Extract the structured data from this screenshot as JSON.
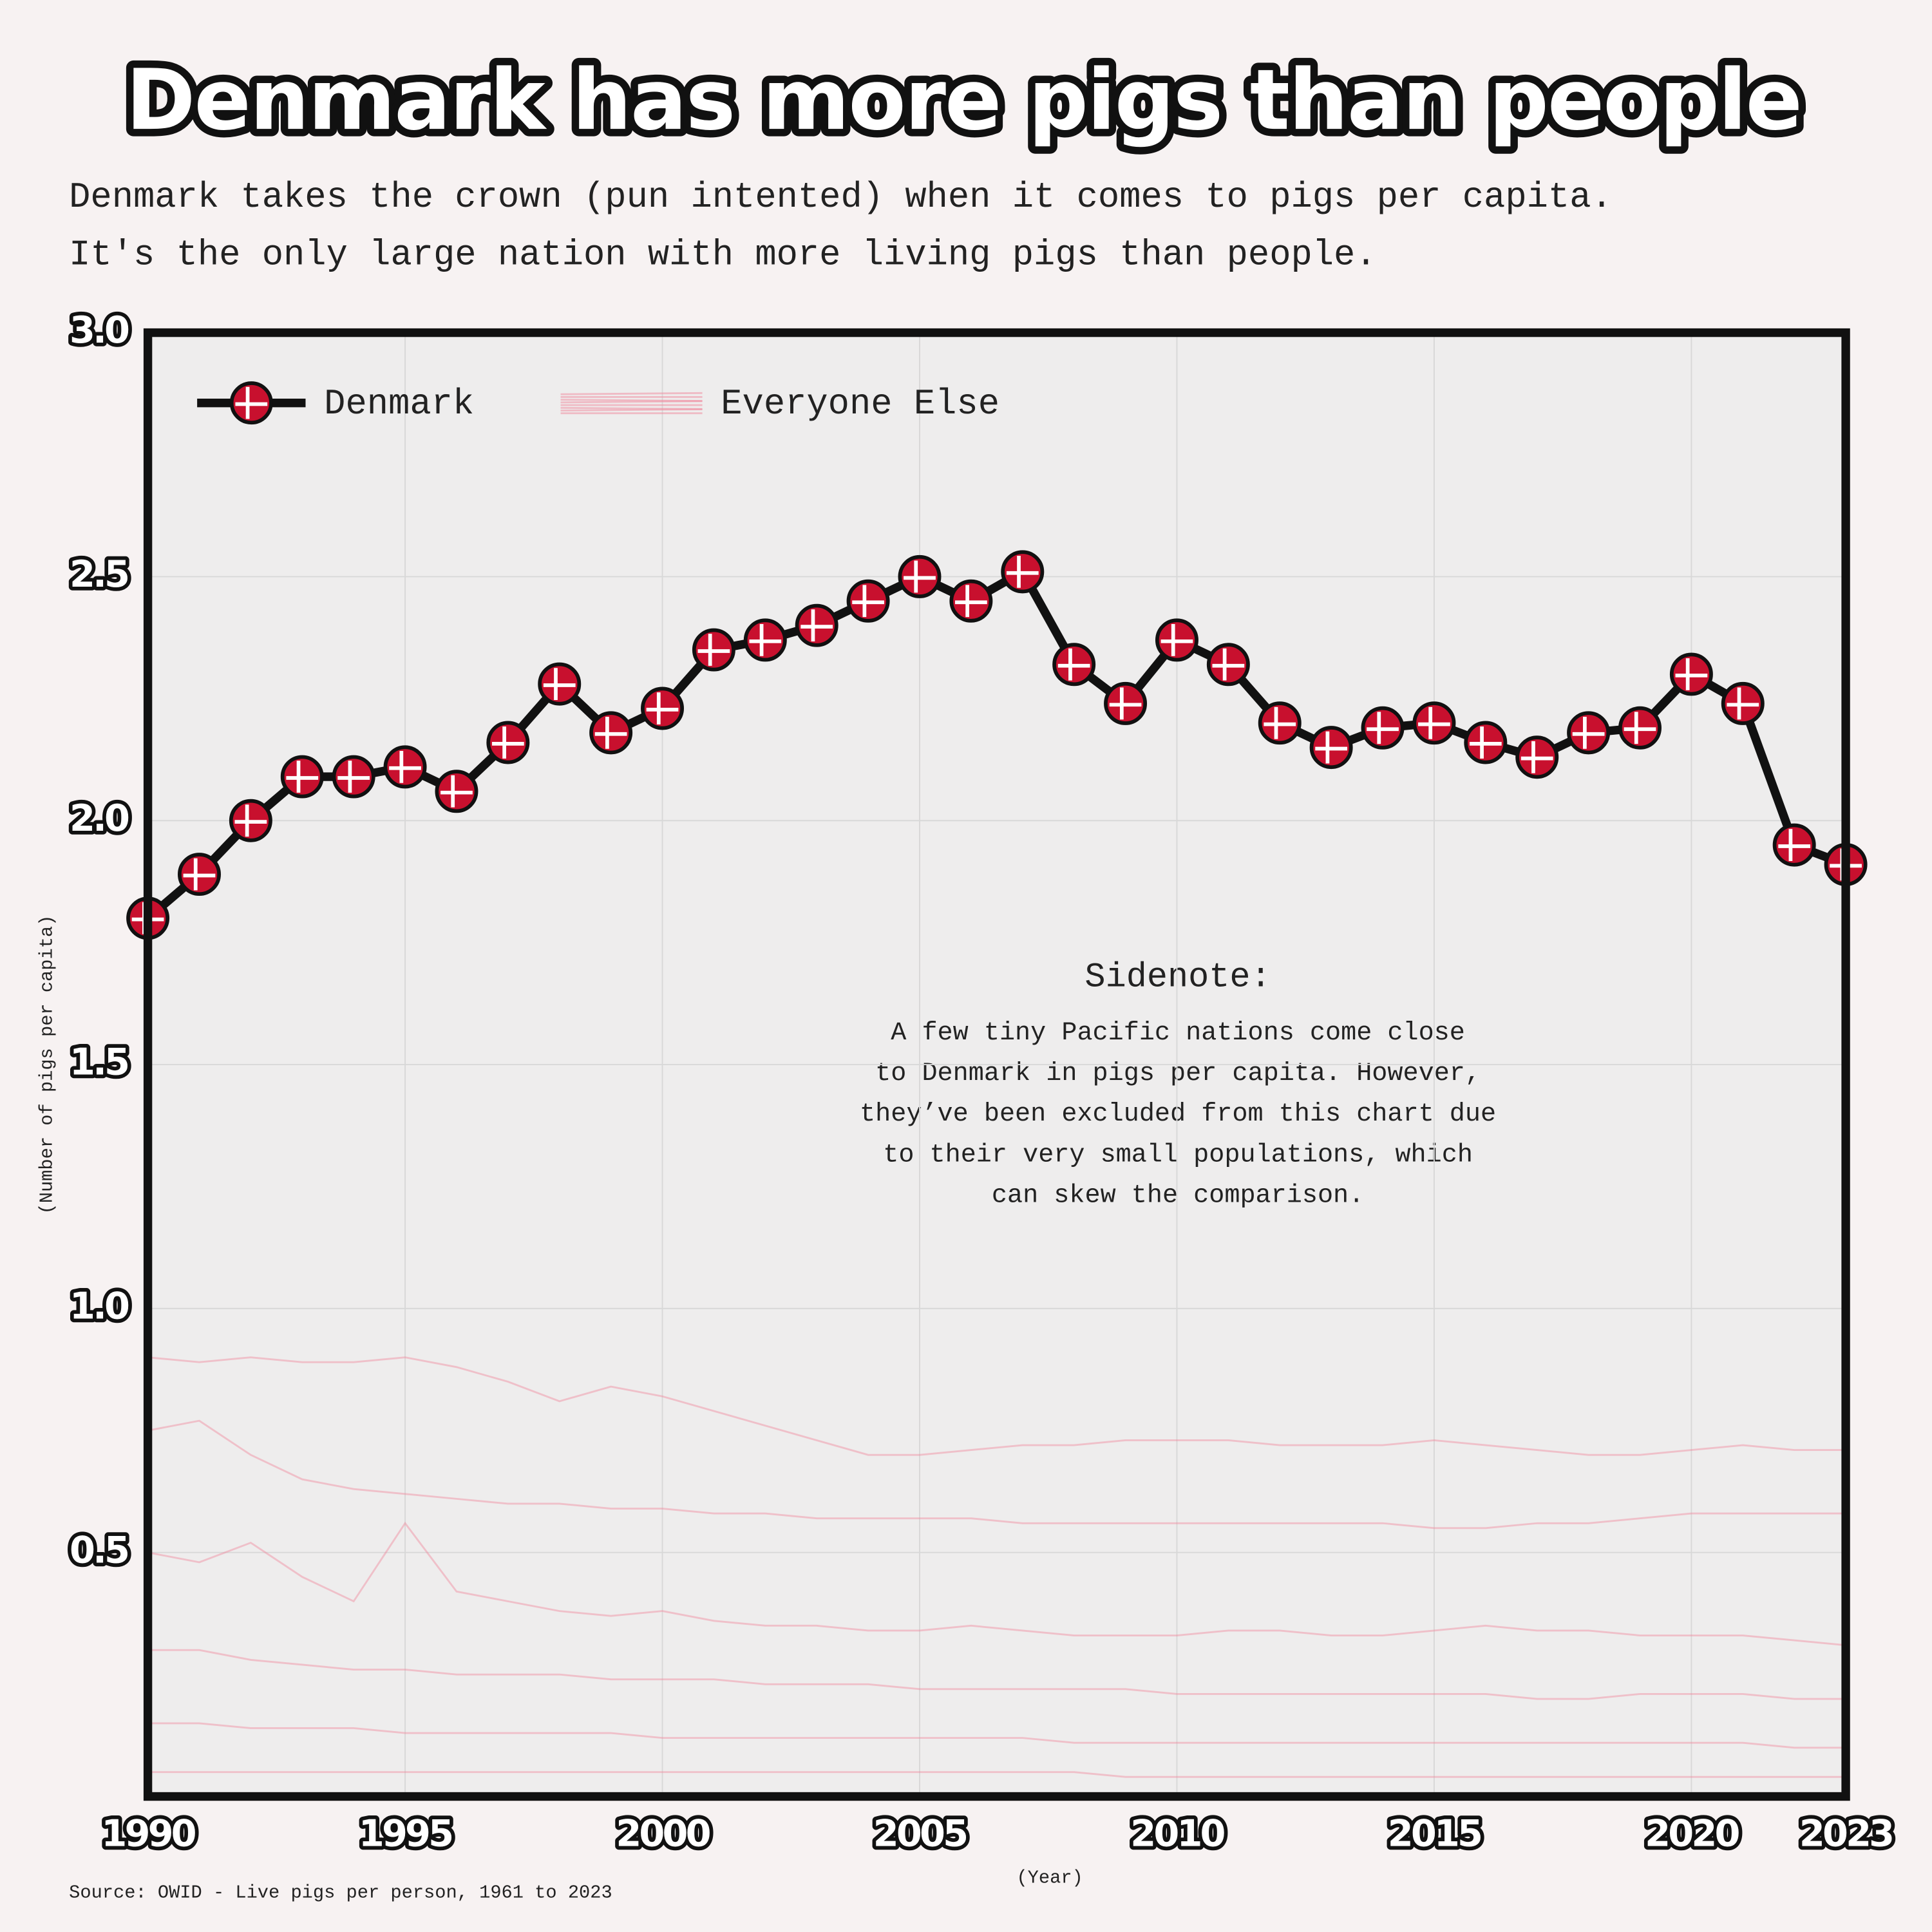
{
  "chart_data": {
    "type": "line",
    "title": "Denmark has more pigs than people",
    "subtitle": [
      "Denmark takes the crown (pun intented) when it comes to pigs per capita.",
      "It's the only large nation with more living pigs than people."
    ],
    "y_label": "(Number of pigs per capita)",
    "x_label": "(Year)",
    "source": "Source: OWID - Live pigs per person, 1961 to 2023",
    "annotation": {
      "title": "Sidenote:",
      "lines": [
        "A few tiny Pacific nations come close",
        "to Denmark in pigs per capita. However,",
        "they’ve been excluded from this chart due",
        "to their very small populations, which",
        "can skew the comparison."
      ]
    },
    "x": [
      1990,
      1991,
      1992,
      1993,
      1994,
      1995,
      1996,
      1997,
      1998,
      1999,
      2000,
      2001,
      2002,
      2003,
      2004,
      2005,
      2006,
      2007,
      2008,
      2009,
      2010,
      2011,
      2012,
      2013,
      2014,
      2015,
      2016,
      2017,
      2018,
      2019,
      2020,
      2021,
      2022,
      2023
    ],
    "series": [
      {
        "name": "Denmark",
        "color": "#c8102e",
        "values": [
          1.8,
          1.89,
          2.0,
          2.09,
          2.09,
          2.11,
          2.06,
          2.16,
          2.28,
          2.18,
          2.23,
          2.35,
          2.37,
          2.4,
          2.45,
          2.5,
          2.45,
          2.51,
          2.32,
          2.24,
          2.37,
          2.32,
          2.2,
          2.15,
          2.19,
          2.2,
          2.16,
          2.13,
          2.18,
          2.19,
          2.3,
          2.24,
          1.95,
          1.91
        ]
      },
      {
        "name": "Everyone Else",
        "color": "#f0899e",
        "lines": [
          [
            0.9,
            0.89,
            0.9,
            0.89,
            0.89,
            0.9,
            0.88,
            0.85,
            0.81,
            0.84,
            0.82,
            0.79,
            0.76,
            0.73,
            0.7,
            0.7,
            0.71,
            0.72,
            0.72,
            0.73,
            0.73,
            0.73,
            0.72,
            0.72,
            0.72,
            0.73,
            0.72,
            0.71,
            0.7,
            0.7,
            0.71,
            0.72,
            0.71,
            0.71
          ],
          [
            0.75,
            0.77,
            0.7,
            0.65,
            0.63,
            0.62,
            0.61,
            0.6,
            0.6,
            0.59,
            0.59,
            0.58,
            0.58,
            0.57,
            0.57,
            0.57,
            0.57,
            0.56,
            0.56,
            0.56,
            0.56,
            0.56,
            0.56,
            0.56,
            0.56,
            0.55,
            0.55,
            0.56,
            0.56,
            0.57,
            0.58,
            0.58,
            0.58,
            0.58
          ],
          [
            0.5,
            0.48,
            0.52,
            0.45,
            0.4,
            0.56,
            0.42,
            0.4,
            0.38,
            0.37,
            0.38,
            0.36,
            0.35,
            0.35,
            0.34,
            0.34,
            0.35,
            0.34,
            0.33,
            0.33,
            0.33,
            0.34,
            0.34,
            0.33,
            0.33,
            0.34,
            0.35,
            0.34,
            0.34,
            0.33,
            0.33,
            0.33,
            0.32,
            0.31
          ],
          [
            0.3,
            0.3,
            0.28,
            0.27,
            0.26,
            0.26,
            0.25,
            0.25,
            0.25,
            0.24,
            0.24,
            0.24,
            0.23,
            0.23,
            0.23,
            0.22,
            0.22,
            0.22,
            0.22,
            0.22,
            0.21,
            0.21,
            0.21,
            0.21,
            0.21,
            0.21,
            0.21,
            0.2,
            0.2,
            0.21,
            0.21,
            0.21,
            0.2,
            0.2
          ],
          [
            0.15,
            0.15,
            0.14,
            0.14,
            0.14,
            0.13,
            0.13,
            0.13,
            0.13,
            0.13,
            0.12,
            0.12,
            0.12,
            0.12,
            0.12,
            0.12,
            0.12,
            0.12,
            0.11,
            0.11,
            0.11,
            0.11,
            0.11,
            0.11,
            0.11,
            0.11,
            0.11,
            0.11,
            0.11,
            0.11,
            0.11,
            0.11,
            0.1,
            0.1
          ],
          [
            0.05,
            0.05,
            0.05,
            0.05,
            0.05,
            0.05,
            0.05,
            0.05,
            0.05,
            0.05,
            0.05,
            0.05,
            0.05,
            0.05,
            0.05,
            0.05,
            0.05,
            0.05,
            0.05,
            0.04,
            0.04,
            0.04,
            0.04,
            0.04,
            0.04,
            0.04,
            0.04,
            0.04,
            0.04,
            0.04,
            0.04,
            0.04,
            0.04,
            0.04
          ]
        ]
      }
    ],
    "xlim": [
      1990,
      2023
    ],
    "xticks": [
      1990,
      1995,
      2000,
      2005,
      2010,
      2015,
      2020,
      2023
    ],
    "ylim": [
      0,
      3
    ],
    "yticks": [
      0.5,
      {
        "value": 1,
        "label": "1.0"
      },
      1.5,
      {
        "value": 2,
        "label": "2.0"
      },
      2.5,
      {
        "value": 3,
        "label": "3.0"
      }
    ],
    "grid": true,
    "legend": "top-left"
  }
}
